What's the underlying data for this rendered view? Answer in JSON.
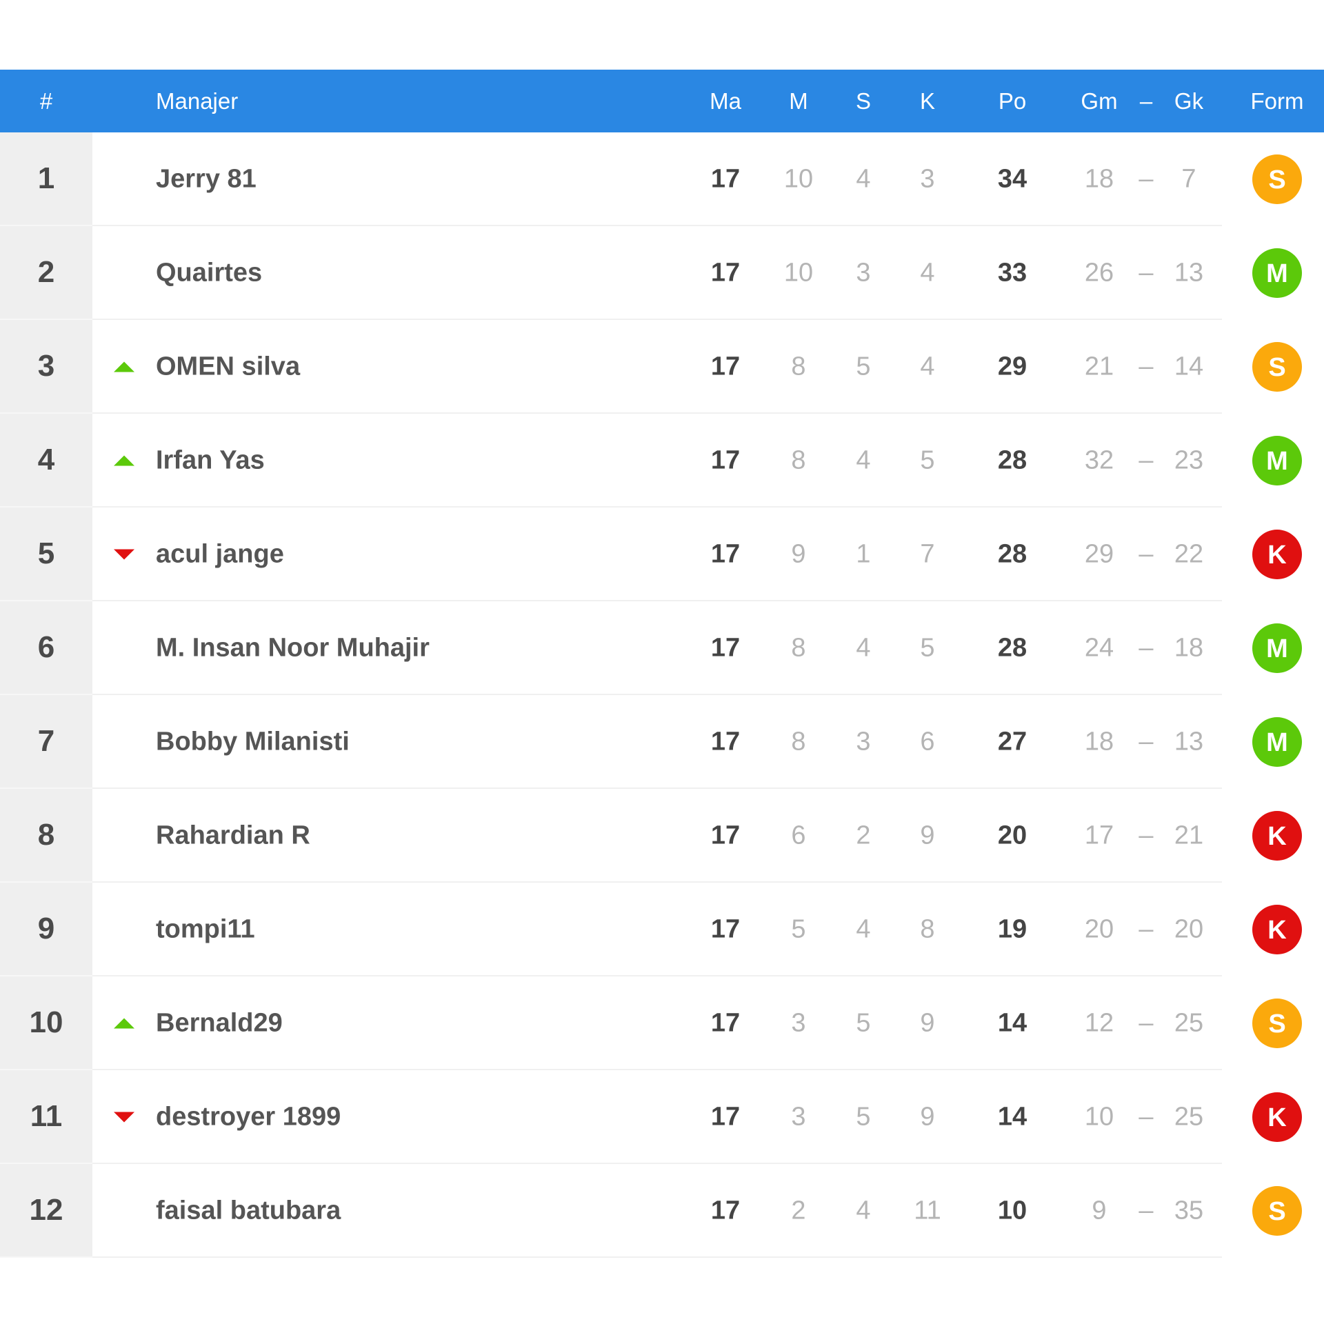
{
  "header": {
    "rank": "#",
    "manager": "Manajer",
    "ma": "Ma",
    "m": "M",
    "s": "S",
    "k": "K",
    "po": "Po",
    "gm": "Gm",
    "dash": "–",
    "gk": "Gk",
    "form": "Form"
  },
  "colors": {
    "header": "#2a87e3",
    "trend_up": "#5cc90a",
    "trend_down": "#e01010",
    "form": {
      "M": "#5cc90a",
      "S": "#fba90c",
      "K": "#e01010"
    }
  },
  "rows": [
    {
      "rank": "1",
      "trend": "none",
      "manager": "Jerry 81",
      "ma": "17",
      "m": "10",
      "s": "4",
      "k": "3",
      "po": "34",
      "gm": "18",
      "gk": "7",
      "form": "S"
    },
    {
      "rank": "2",
      "trend": "none",
      "manager": "Quairtes",
      "ma": "17",
      "m": "10",
      "s": "3",
      "k": "4",
      "po": "33",
      "gm": "26",
      "gk": "13",
      "form": "M"
    },
    {
      "rank": "3",
      "trend": "up",
      "manager": "OMEN silva",
      "ma": "17",
      "m": "8",
      "s": "5",
      "k": "4",
      "po": "29",
      "gm": "21",
      "gk": "14",
      "form": "S"
    },
    {
      "rank": "4",
      "trend": "up",
      "manager": "Irfan Yas",
      "ma": "17",
      "m": "8",
      "s": "4",
      "k": "5",
      "po": "28",
      "gm": "32",
      "gk": "23",
      "form": "M"
    },
    {
      "rank": "5",
      "trend": "down",
      "manager": "acul jange",
      "ma": "17",
      "m": "9",
      "s": "1",
      "k": "7",
      "po": "28",
      "gm": "29",
      "gk": "22",
      "form": "K"
    },
    {
      "rank": "6",
      "trend": "none",
      "manager": "M. Insan Noor Muhajir",
      "ma": "17",
      "m": "8",
      "s": "4",
      "k": "5",
      "po": "28",
      "gm": "24",
      "gk": "18",
      "form": "M"
    },
    {
      "rank": "7",
      "trend": "none",
      "manager": "Bobby Milanisti",
      "ma": "17",
      "m": "8",
      "s": "3",
      "k": "6",
      "po": "27",
      "gm": "18",
      "gk": "13",
      "form": "M"
    },
    {
      "rank": "8",
      "trend": "none",
      "manager": "Rahardian R",
      "ma": "17",
      "m": "6",
      "s": "2",
      "k": "9",
      "po": "20",
      "gm": "17",
      "gk": "21",
      "form": "K"
    },
    {
      "rank": "9",
      "trend": "none",
      "manager": "tompi11",
      "ma": "17",
      "m": "5",
      "s": "4",
      "k": "8",
      "po": "19",
      "gm": "20",
      "gk": "20",
      "form": "K"
    },
    {
      "rank": "10",
      "trend": "up",
      "manager": "Bernald29",
      "ma": "17",
      "m": "3",
      "s": "5",
      "k": "9",
      "po": "14",
      "gm": "12",
      "gk": "25",
      "form": "S"
    },
    {
      "rank": "11",
      "trend": "down",
      "manager": "destroyer 1899",
      "ma": "17",
      "m": "3",
      "s": "5",
      "k": "9",
      "po": "14",
      "gm": "10",
      "gk": "25",
      "form": "K"
    },
    {
      "rank": "12",
      "trend": "none",
      "manager": "faisal batubara",
      "ma": "17",
      "m": "2",
      "s": "4",
      "k": "11",
      "po": "10",
      "gm": "9",
      "gk": "35",
      "form": "S"
    }
  ]
}
